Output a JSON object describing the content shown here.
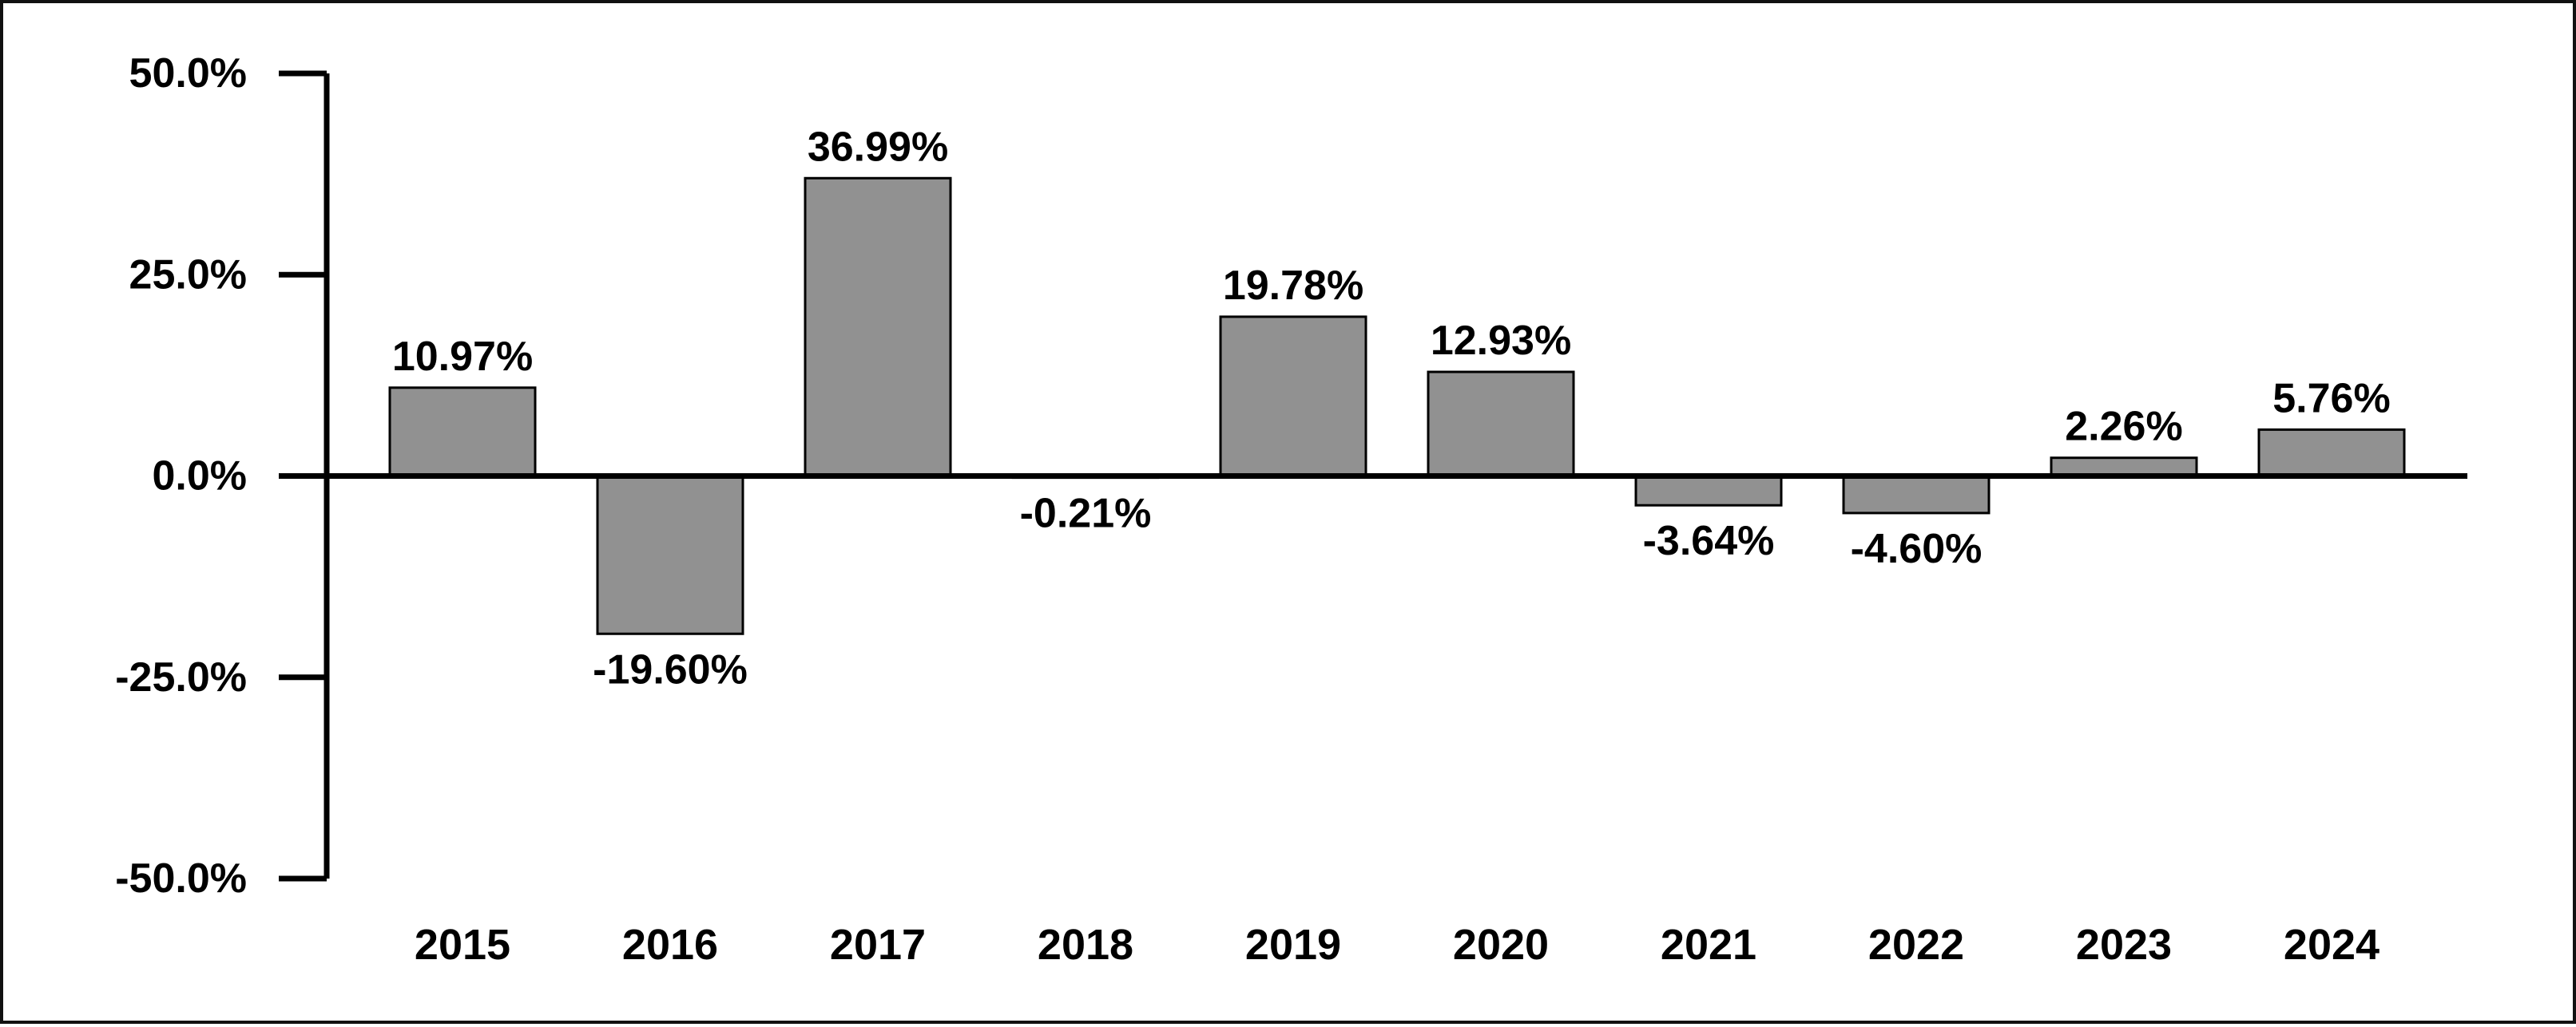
{
  "chart_data": {
    "type": "bar",
    "title": "",
    "xlabel": "",
    "ylabel": "",
    "categories": [
      "2015",
      "2016",
      "2017",
      "2018",
      "2019",
      "2020",
      "2021",
      "2022",
      "2023",
      "2024"
    ],
    "values": [
      10.97,
      -19.6,
      36.99,
      -0.21,
      19.78,
      12.93,
      -3.64,
      -4.6,
      2.26,
      5.76
    ],
    "value_labels": [
      "10.97%",
      "-19.60%",
      "36.99%",
      "-0.21%",
      "19.78%",
      "12.93%",
      "-3.64%",
      "-4.60%",
      "2.26%",
      "5.76%"
    ],
    "ylim": [
      -50,
      50
    ],
    "yticks": [
      50,
      25,
      0,
      -25,
      -50
    ],
    "ytick_labels": [
      "50.0%",
      "25.0%",
      "0.0%",
      "-25.0%",
      "-50.0%"
    ],
    "grid": false,
    "legend": "none",
    "bar_color": "#919191",
    "bar_edge_color": "#000000"
  }
}
